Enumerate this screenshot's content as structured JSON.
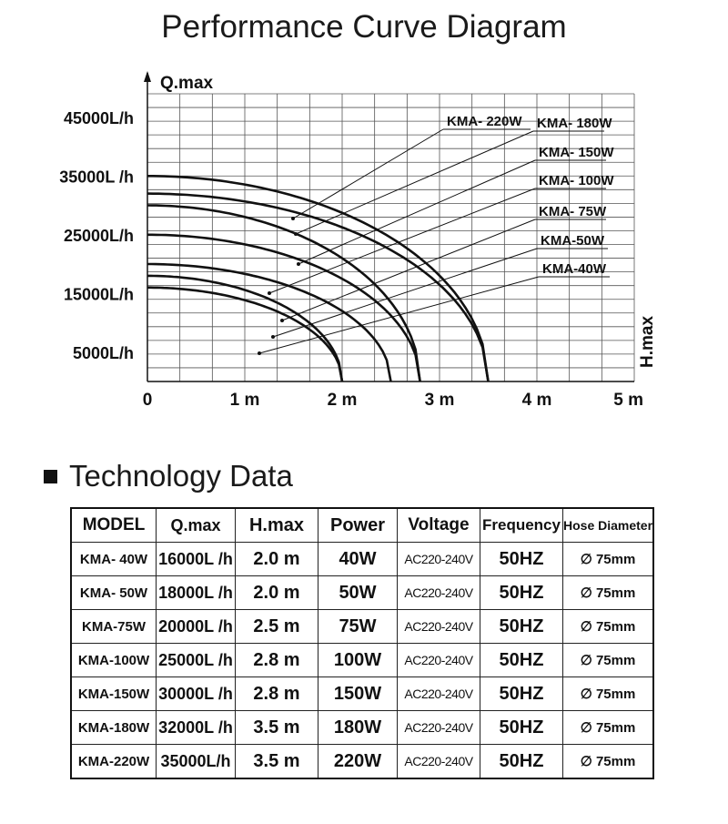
{
  "title": "Performance Curve Diagram",
  "chart_data": {
    "type": "line",
    "x_label": "H.max",
    "y_label": "Q.max",
    "x_ticks": [
      {
        "value": 0,
        "label": "0"
      },
      {
        "value": 1,
        "label": "1 m"
      },
      {
        "value": 2,
        "label": "2 m"
      },
      {
        "value": 3,
        "label": "3 m"
      },
      {
        "value": 4,
        "label": "4 m"
      },
      {
        "value": 5,
        "label": "5 m"
      }
    ],
    "y_ticks": [
      {
        "value": 5000,
        "label": "5000L/h"
      },
      {
        "value": 15000,
        "label": "15000L/h"
      },
      {
        "value": 25000,
        "label": "25000L/h"
      },
      {
        "value": 35000,
        "label": "35000L /h"
      },
      {
        "value": 45000,
        "label": "45000L/h"
      }
    ],
    "xlim": [
      0,
      5
    ],
    "ylim": [
      0,
      49000
    ],
    "grid": true,
    "series": [
      {
        "name": "KMA- 220W",
        "q0": 35000,
        "hmax": 3.5
      },
      {
        "name": "KMA- 180W",
        "q0": 32000,
        "hmax": 3.5
      },
      {
        "name": "KMA- 150W",
        "q0": 30000,
        "hmax": 2.8
      },
      {
        "name": "KMA- 100W",
        "q0": 25000,
        "hmax": 2.8
      },
      {
        "name": "KMA- 75W",
        "q0": 20000,
        "hmax": 2.5
      },
      {
        "name": "KMA-50W",
        "q0": 18000,
        "hmax": 2.0
      },
      {
        "name": "KMA-40W",
        "q0": 16000,
        "hmax": 2.0
      }
    ]
  },
  "tech": {
    "heading": "Technology Data",
    "headers": [
      "MODEL",
      "Q.max",
      "H.max",
      "Power",
      "Voltage",
      "Frequency",
      "Hose Diameter"
    ],
    "rows": [
      [
        "KMA- 40W",
        "16000L /h",
        "2.0 m",
        "40W",
        "AC220-240V",
        "50HZ",
        "∅ 75mm"
      ],
      [
        "KMA- 50W",
        "18000L /h",
        "2.0 m",
        "50W",
        "AC220-240V",
        "50HZ",
        "∅ 75mm"
      ],
      [
        "KMA-75W",
        "20000L /h",
        "2.5 m",
        "75W",
        "AC220-240V",
        "50HZ",
        "∅ 75mm"
      ],
      [
        "KMA-100W",
        "25000L /h",
        "2.8 m",
        "100W",
        "AC220-240V",
        "50HZ",
        "∅ 75mm"
      ],
      [
        "KMA-150W",
        "30000L /h",
        "2.8 m",
        "150W",
        "AC220-240V",
        "50HZ",
        "∅ 75mm"
      ],
      [
        "KMA-180W",
        "32000L /h",
        "3.5 m",
        "180W",
        "AC220-240V",
        "50HZ",
        "∅ 75mm"
      ],
      [
        "KMA-220W",
        "35000L/h",
        "3.5 m",
        "220W",
        "AC220-240V",
        "50HZ",
        "∅ 75mm"
      ]
    ]
  }
}
